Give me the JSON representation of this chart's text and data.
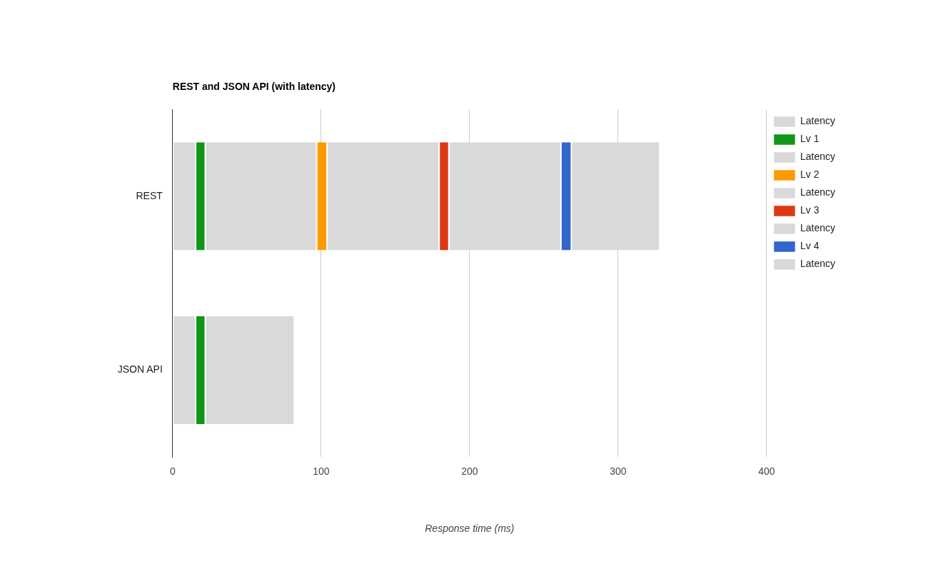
{
  "chart_data": {
    "type": "bar",
    "title": "REST and JSON API (with latency)",
    "xlabel": "Response time (ms)",
    "orientation": "horizontal",
    "stacked": true,
    "categories": [
      "REST",
      "JSON API"
    ],
    "series": [
      {
        "name": "Latency",
        "color": "#d9d9d9",
        "values": [
          15.5,
          15.5
        ]
      },
      {
        "name": "Lv 1",
        "color": "#109618",
        "values": [
          6.5,
          6.5
        ]
      },
      {
        "name": "Latency",
        "color": "#d9d9d9",
        "values": [
          75,
          60
        ]
      },
      {
        "name": "Lv 2",
        "color": "#ff9900",
        "values": [
          7,
          null
        ]
      },
      {
        "name": "Latency",
        "color": "#d9d9d9",
        "values": [
          75.5,
          null
        ]
      },
      {
        "name": "Lv 3",
        "color": "#dc3912",
        "values": [
          6.5,
          null
        ]
      },
      {
        "name": "Latency",
        "color": "#d9d9d9",
        "values": [
          75.5,
          null
        ]
      },
      {
        "name": "Lv 4",
        "color": "#3366cc",
        "values": [
          7,
          null
        ]
      },
      {
        "name": "Latency",
        "color": "#d9d9d9",
        "values": [
          59.5,
          null
        ]
      }
    ],
    "xlim": [
      0,
      400
    ],
    "xticks": [
      0,
      100,
      200,
      300,
      400
    ],
    "grid": "x",
    "legend": "top right"
  }
}
